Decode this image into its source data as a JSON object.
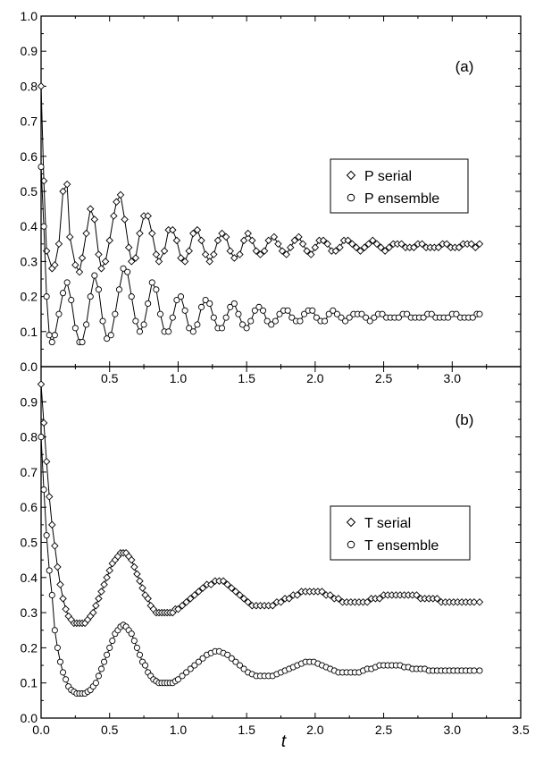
{
  "chart_data": [
    {
      "type": "scatter",
      "panel_label": "(a)",
      "xlim": [
        0.0,
        3.5
      ],
      "ylim": [
        0.0,
        1.0
      ],
      "x_ticks": [
        "0.5",
        "1.0",
        "1.5",
        "2.0",
        "2.5",
        "3.0"
      ],
      "x_tick_values": [
        0.5,
        1.0,
        1.5,
        2.0,
        2.5,
        3.0
      ],
      "y_ticks": [
        "0.0",
        "0.1",
        "0.2",
        "0.3",
        "0.4",
        "0.5",
        "0.6",
        "0.7",
        "0.8",
        "0.9",
        "1.0"
      ],
      "y_tick_values": [
        0.0,
        0.1,
        0.2,
        0.3,
        0.4,
        0.5,
        0.6,
        0.7,
        0.8,
        0.9,
        1.0
      ],
      "legend_position": "middle-right",
      "grid": false,
      "series": [
        {
          "name": "P serial",
          "marker": "diamond",
          "x": [
            0.0,
            0.02,
            0.04,
            0.08,
            0.1,
            0.13,
            0.16,
            0.19,
            0.21,
            0.25,
            0.28,
            0.3,
            0.33,
            0.36,
            0.39,
            0.42,
            0.44,
            0.47,
            0.5,
            0.53,
            0.55,
            0.58,
            0.61,
            0.64,
            0.66,
            0.69,
            0.72,
            0.75,
            0.78,
            0.81,
            0.84,
            0.86,
            0.9,
            0.93,
            0.96,
            0.99,
            1.02,
            1.05,
            1.08,
            1.11,
            1.14,
            1.17,
            1.2,
            1.23,
            1.26,
            1.29,
            1.32,
            1.35,
            1.38,
            1.41,
            1.45,
            1.48,
            1.51,
            1.54,
            1.57,
            1.6,
            1.63,
            1.66,
            1.7,
            1.73,
            1.76,
            1.79,
            1.82,
            1.85,
            1.88,
            1.91,
            1.94,
            1.97,
            2.0,
            2.03,
            2.06,
            2.09,
            2.12,
            2.15,
            2.18,
            2.21,
            2.24,
            2.27,
            2.3,
            2.33,
            2.36,
            2.39,
            2.42,
            2.45,
            2.48,
            2.51,
            2.54,
            2.57,
            2.6,
            2.63,
            2.66,
            2.69,
            2.72,
            2.75,
            2.78,
            2.81,
            2.84,
            2.87,
            2.9,
            2.93,
            2.96,
            2.99,
            3.02,
            3.05,
            3.08,
            3.11,
            3.14,
            3.17,
            3.2
          ],
          "y": [
            0.8,
            0.53,
            0.33,
            0.28,
            0.29,
            0.35,
            0.5,
            0.52,
            0.37,
            0.29,
            0.27,
            0.31,
            0.38,
            0.45,
            0.42,
            0.32,
            0.28,
            0.3,
            0.36,
            0.43,
            0.47,
            0.49,
            0.42,
            0.34,
            0.3,
            0.31,
            0.38,
            0.43,
            0.43,
            0.38,
            0.32,
            0.3,
            0.33,
            0.39,
            0.39,
            0.36,
            0.31,
            0.3,
            0.33,
            0.38,
            0.39,
            0.36,
            0.32,
            0.3,
            0.32,
            0.36,
            0.38,
            0.37,
            0.33,
            0.31,
            0.32,
            0.36,
            0.38,
            0.36,
            0.33,
            0.32,
            0.33,
            0.36,
            0.37,
            0.35,
            0.33,
            0.32,
            0.34,
            0.36,
            0.37,
            0.35,
            0.33,
            0.32,
            0.34,
            0.36,
            0.36,
            0.35,
            0.33,
            0.33,
            0.34,
            0.36,
            0.36,
            0.35,
            0.34,
            0.33,
            0.34,
            0.35,
            0.36,
            0.35,
            0.34,
            0.33,
            0.34,
            0.35,
            0.35,
            0.35,
            0.34,
            0.34,
            0.34,
            0.35,
            0.35,
            0.34,
            0.34,
            0.34,
            0.34,
            0.35,
            0.35,
            0.34,
            0.34,
            0.34,
            0.35,
            0.35,
            0.35,
            0.34,
            0.35
          ]
        },
        {
          "name": "P ensemble",
          "marker": "circle",
          "x": [
            0.0,
            0.02,
            0.04,
            0.06,
            0.08,
            0.1,
            0.13,
            0.16,
            0.19,
            0.22,
            0.25,
            0.28,
            0.3,
            0.33,
            0.36,
            0.39,
            0.42,
            0.45,
            0.48,
            0.51,
            0.54,
            0.57,
            0.6,
            0.63,
            0.66,
            0.69,
            0.72,
            0.75,
            0.78,
            0.81,
            0.84,
            0.87,
            0.9,
            0.93,
            0.96,
            0.99,
            1.02,
            1.05,
            1.08,
            1.11,
            1.14,
            1.17,
            1.2,
            1.23,
            1.26,
            1.29,
            1.32,
            1.35,
            1.38,
            1.41,
            1.44,
            1.47,
            1.5,
            1.53,
            1.56,
            1.59,
            1.62,
            1.65,
            1.68,
            1.71,
            1.74,
            1.77,
            1.8,
            1.83,
            1.86,
            1.89,
            1.92,
            1.95,
            1.98,
            2.01,
            2.04,
            2.07,
            2.1,
            2.13,
            2.16,
            2.19,
            2.22,
            2.25,
            2.28,
            2.31,
            2.34,
            2.37,
            2.4,
            2.43,
            2.46,
            2.49,
            2.52,
            2.55,
            2.58,
            2.61,
            2.64,
            2.67,
            2.7,
            2.73,
            2.76,
            2.79,
            2.82,
            2.85,
            2.88,
            2.91,
            2.94,
            2.97,
            3.0,
            3.03,
            3.06,
            3.09,
            3.12,
            3.15,
            3.18,
            3.2
          ],
          "y": [
            0.57,
            0.4,
            0.2,
            0.09,
            0.07,
            0.09,
            0.15,
            0.21,
            0.24,
            0.19,
            0.11,
            0.07,
            0.07,
            0.12,
            0.2,
            0.26,
            0.22,
            0.13,
            0.08,
            0.09,
            0.15,
            0.22,
            0.28,
            0.27,
            0.2,
            0.13,
            0.1,
            0.12,
            0.18,
            0.24,
            0.22,
            0.15,
            0.1,
            0.1,
            0.14,
            0.19,
            0.2,
            0.16,
            0.11,
            0.1,
            0.12,
            0.17,
            0.19,
            0.18,
            0.14,
            0.11,
            0.11,
            0.14,
            0.17,
            0.18,
            0.15,
            0.12,
            0.11,
            0.13,
            0.16,
            0.17,
            0.16,
            0.13,
            0.12,
            0.13,
            0.15,
            0.16,
            0.16,
            0.14,
            0.13,
            0.13,
            0.15,
            0.16,
            0.16,
            0.14,
            0.13,
            0.13,
            0.15,
            0.16,
            0.15,
            0.14,
            0.13,
            0.14,
            0.15,
            0.15,
            0.15,
            0.14,
            0.13,
            0.14,
            0.15,
            0.15,
            0.14,
            0.14,
            0.14,
            0.14,
            0.15,
            0.15,
            0.14,
            0.14,
            0.14,
            0.14,
            0.15,
            0.15,
            0.14,
            0.14,
            0.14,
            0.14,
            0.15,
            0.15,
            0.14,
            0.14,
            0.14,
            0.14,
            0.15,
            0.15
          ]
        }
      ]
    },
    {
      "type": "scatter",
      "panel_label": "(b)",
      "xlabel": "t",
      "xlim": [
        0.0,
        3.5
      ],
      "ylim": [
        0.0,
        1.0
      ],
      "x_ticks": [
        "0.0",
        "0.5",
        "1.0",
        "1.5",
        "2.0",
        "2.5",
        "3.0",
        "3.5"
      ],
      "x_tick_values": [
        0.0,
        0.5,
        1.0,
        1.5,
        2.0,
        2.5,
        3.0,
        3.5
      ],
      "y_ticks": [
        "0.0",
        "0.1",
        "0.2",
        "0.3",
        "0.4",
        "0.5",
        "0.6",
        "0.7",
        "0.8",
        "0.9"
      ],
      "y_tick_values": [
        0.0,
        0.1,
        0.2,
        0.3,
        0.4,
        0.5,
        0.6,
        0.7,
        0.8,
        0.9
      ],
      "legend_position": "middle-right",
      "grid": false,
      "series": [
        {
          "name": "T serial",
          "marker": "diamond",
          "x": [
            0.0,
            0.02,
            0.04,
            0.06,
            0.08,
            0.1,
            0.12,
            0.14,
            0.16,
            0.18,
            0.2,
            0.22,
            0.24,
            0.26,
            0.28,
            0.3,
            0.32,
            0.34,
            0.36,
            0.38,
            0.4,
            0.42,
            0.44,
            0.46,
            0.48,
            0.5,
            0.52,
            0.54,
            0.56,
            0.58,
            0.6,
            0.62,
            0.64,
            0.66,
            0.68,
            0.7,
            0.72,
            0.74,
            0.76,
            0.78,
            0.8,
            0.82,
            0.84,
            0.86,
            0.88,
            0.9,
            0.92,
            0.94,
            0.96,
            0.98,
            1.0,
            1.03,
            1.06,
            1.09,
            1.12,
            1.15,
            1.18,
            1.21,
            1.24,
            1.27,
            1.3,
            1.33,
            1.36,
            1.39,
            1.42,
            1.45,
            1.48,
            1.51,
            1.54,
            1.57,
            1.6,
            1.63,
            1.66,
            1.69,
            1.72,
            1.75,
            1.78,
            1.81,
            1.84,
            1.87,
            1.9,
            1.93,
            1.96,
            1.99,
            2.02,
            2.05,
            2.08,
            2.11,
            2.14,
            2.17,
            2.2,
            2.23,
            2.26,
            2.29,
            2.32,
            2.35,
            2.38,
            2.41,
            2.44,
            2.47,
            2.5,
            2.53,
            2.56,
            2.59,
            2.62,
            2.65,
            2.68,
            2.71,
            2.74,
            2.77,
            2.8,
            2.83,
            2.86,
            2.89,
            2.92,
            2.95,
            2.98,
            3.01,
            3.04,
            3.07,
            3.1,
            3.13,
            3.16,
            3.2
          ],
          "y": [
            0.95,
            0.84,
            0.73,
            0.63,
            0.55,
            0.49,
            0.43,
            0.38,
            0.34,
            0.31,
            0.29,
            0.28,
            0.27,
            0.27,
            0.27,
            0.27,
            0.27,
            0.28,
            0.29,
            0.3,
            0.32,
            0.34,
            0.36,
            0.38,
            0.4,
            0.42,
            0.44,
            0.45,
            0.46,
            0.47,
            0.47,
            0.47,
            0.46,
            0.45,
            0.43,
            0.41,
            0.39,
            0.37,
            0.35,
            0.34,
            0.32,
            0.31,
            0.3,
            0.3,
            0.3,
            0.3,
            0.3,
            0.3,
            0.3,
            0.31,
            0.31,
            0.32,
            0.33,
            0.34,
            0.35,
            0.36,
            0.37,
            0.38,
            0.38,
            0.39,
            0.39,
            0.39,
            0.38,
            0.37,
            0.36,
            0.35,
            0.34,
            0.33,
            0.32,
            0.32,
            0.32,
            0.32,
            0.32,
            0.32,
            0.33,
            0.33,
            0.34,
            0.34,
            0.35,
            0.35,
            0.36,
            0.36,
            0.36,
            0.36,
            0.36,
            0.36,
            0.35,
            0.35,
            0.34,
            0.34,
            0.33,
            0.33,
            0.33,
            0.33,
            0.33,
            0.33,
            0.33,
            0.34,
            0.34,
            0.34,
            0.35,
            0.35,
            0.35,
            0.35,
            0.35,
            0.35,
            0.35,
            0.35,
            0.35,
            0.34,
            0.34,
            0.34,
            0.34,
            0.34,
            0.33,
            0.33,
            0.33,
            0.33,
            0.33,
            0.33,
            0.33,
            0.33,
            0.33,
            0.33
          ]
        },
        {
          "name": "T ensemble",
          "marker": "circle",
          "x": [
            0.0,
            0.02,
            0.04,
            0.06,
            0.08,
            0.1,
            0.12,
            0.14,
            0.16,
            0.18,
            0.2,
            0.22,
            0.24,
            0.26,
            0.28,
            0.3,
            0.32,
            0.34,
            0.36,
            0.38,
            0.4,
            0.42,
            0.44,
            0.46,
            0.48,
            0.5,
            0.52,
            0.54,
            0.56,
            0.58,
            0.6,
            0.62,
            0.64,
            0.66,
            0.68,
            0.7,
            0.72,
            0.74,
            0.76,
            0.78,
            0.8,
            0.82,
            0.84,
            0.86,
            0.88,
            0.9,
            0.92,
            0.94,
            0.96,
            0.98,
            1.0,
            1.03,
            1.06,
            1.09,
            1.12,
            1.15,
            1.18,
            1.21,
            1.24,
            1.27,
            1.3,
            1.33,
            1.36,
            1.39,
            1.42,
            1.45,
            1.48,
            1.51,
            1.54,
            1.57,
            1.6,
            1.63,
            1.66,
            1.69,
            1.72,
            1.75,
            1.78,
            1.81,
            1.84,
            1.87,
            1.9,
            1.93,
            1.96,
            1.99,
            2.02,
            2.05,
            2.08,
            2.11,
            2.14,
            2.17,
            2.2,
            2.23,
            2.26,
            2.29,
            2.32,
            2.35,
            2.38,
            2.41,
            2.44,
            2.47,
            2.5,
            2.53,
            2.56,
            2.59,
            2.62,
            2.65,
            2.68,
            2.71,
            2.74,
            2.77,
            2.8,
            2.83,
            2.86,
            2.89,
            2.92,
            2.95,
            2.98,
            3.01,
            3.04,
            3.07,
            3.1,
            3.13,
            3.16,
            3.2
          ],
          "y": [
            0.8,
            0.65,
            0.52,
            0.42,
            0.35,
            0.25,
            0.2,
            0.16,
            0.13,
            0.11,
            0.09,
            0.08,
            0.075,
            0.07,
            0.07,
            0.07,
            0.07,
            0.075,
            0.08,
            0.09,
            0.1,
            0.12,
            0.14,
            0.16,
            0.18,
            0.2,
            0.22,
            0.24,
            0.25,
            0.26,
            0.265,
            0.26,
            0.25,
            0.24,
            0.22,
            0.2,
            0.18,
            0.16,
            0.15,
            0.13,
            0.12,
            0.11,
            0.105,
            0.1,
            0.1,
            0.1,
            0.1,
            0.1,
            0.1,
            0.105,
            0.11,
            0.12,
            0.13,
            0.14,
            0.15,
            0.16,
            0.17,
            0.18,
            0.185,
            0.19,
            0.19,
            0.185,
            0.18,
            0.17,
            0.16,
            0.15,
            0.14,
            0.13,
            0.125,
            0.12,
            0.12,
            0.12,
            0.12,
            0.12,
            0.125,
            0.13,
            0.135,
            0.14,
            0.145,
            0.15,
            0.155,
            0.16,
            0.16,
            0.16,
            0.155,
            0.15,
            0.145,
            0.14,
            0.135,
            0.13,
            0.13,
            0.13,
            0.13,
            0.13,
            0.13,
            0.135,
            0.14,
            0.14,
            0.145,
            0.15,
            0.15,
            0.15,
            0.15,
            0.15,
            0.15,
            0.145,
            0.145,
            0.14,
            0.14,
            0.14,
            0.14,
            0.135,
            0.135,
            0.135,
            0.135,
            0.135,
            0.135,
            0.135,
            0.135,
            0.135,
            0.135,
            0.135,
            0.135,
            0.135
          ]
        }
      ]
    }
  ]
}
